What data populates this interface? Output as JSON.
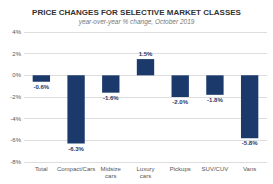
{
  "chart_data": {
    "type": "bar",
    "title": "PRICE CHANGES FOR SELECTIVE MARKET CLASSES",
    "subtitle": "year-over-year % change, October 2019",
    "categories": [
      "Total",
      "Compact/Cars",
      "Midsize\ncars",
      "Luxury\ncars",
      "Pickups",
      "SUV/CUV",
      "Vans"
    ],
    "values": [
      -0.6,
      -6.3,
      -1.6,
      1.5,
      -2.0,
      -1.8,
      -5.8
    ],
    "value_labels": [
      "-0.6%",
      "-6.3%",
      "-1.6%",
      "1.5%",
      "-2.0%",
      "-1.8%",
      "-5.8%"
    ],
    "data_labels": true,
    "color": "#1b3a6b",
    "ylim": [
      -8,
      4
    ],
    "yticks": [
      {
        "value": -8,
        "label": "-8%"
      },
      {
        "value": -6,
        "label": "-6%"
      },
      {
        "value": -4,
        "label": "-4%"
      },
      {
        "value": -2,
        "label": "-2%"
      },
      {
        "value": 0,
        "label": "0%"
      },
      {
        "value": 2,
        "label": "2%"
      },
      {
        "value": 4,
        "label": "4%"
      }
    ],
    "grid": true
  }
}
